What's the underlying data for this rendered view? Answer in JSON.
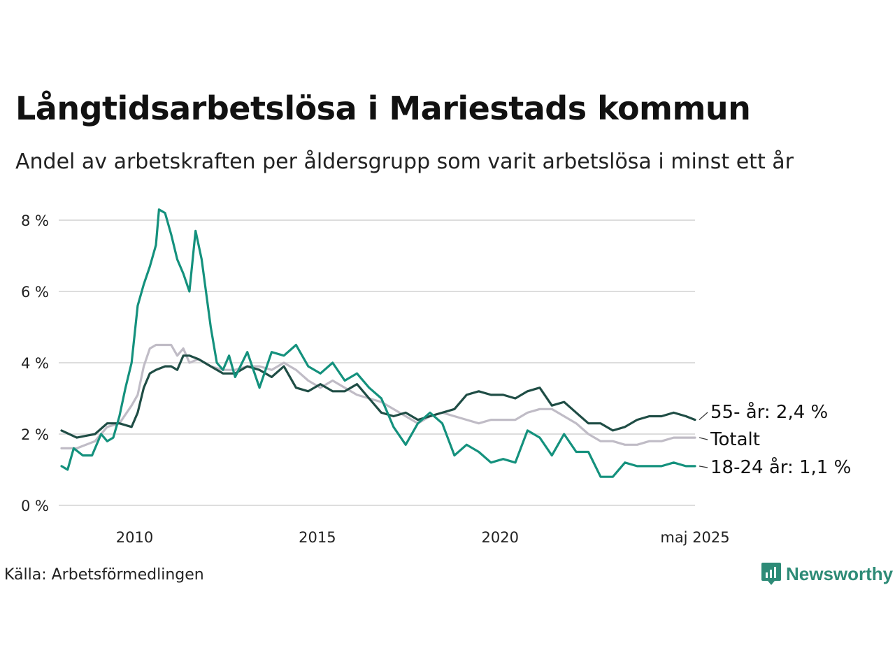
{
  "title": "Långtidsarbetslösa i Mariestads kommun",
  "subtitle": "Andel av arbetskraften per åldersgrupp som varit arbetslösa i minst ett år",
  "source": "Källa: Arbetsförmedlingen",
  "brand": "Newsworthy",
  "colors": {
    "age_55": "#1f4d45",
    "total": "#c0bcc6",
    "age_18_24": "#14917d",
    "grid": "#dddddd",
    "brand": "#2e8b77"
  },
  "chart_data": {
    "type": "line",
    "ylim": [
      0,
      8.3
    ],
    "yticks": [
      {
        "value": 0,
        "label": "0 %"
      },
      {
        "value": 2,
        "label": "2 %"
      },
      {
        "value": 4,
        "label": "4 %"
      },
      {
        "value": 6,
        "label": "6 %"
      },
      {
        "value": 8,
        "label": "8 %"
      }
    ],
    "xlim": [
      "2008-01",
      "2025-05"
    ],
    "xticks": [
      {
        "value": "2010-01",
        "label": "2010"
      },
      {
        "value": "2015-01",
        "label": "2015"
      },
      {
        "value": "2020-01",
        "label": "2020"
      },
      {
        "value": "2025-05",
        "label": "maj 2025"
      }
    ],
    "grid": true,
    "series": [
      {
        "name": "Totalt",
        "end_label": "Totalt",
        "color_key": "total",
        "points": [
          [
            "2008-01",
            1.6
          ],
          [
            "2008-06",
            1.6
          ],
          [
            "2008-12",
            1.8
          ],
          [
            "2009-04",
            2.2
          ],
          [
            "2009-08",
            2.3
          ],
          [
            "2009-12",
            2.8
          ],
          [
            "2010-02",
            3.1
          ],
          [
            "2010-04",
            3.9
          ],
          [
            "2010-06",
            4.4
          ],
          [
            "2010-08",
            4.5
          ],
          [
            "2010-11",
            4.5
          ],
          [
            "2011-01",
            4.5
          ],
          [
            "2011-03",
            4.2
          ],
          [
            "2011-05",
            4.4
          ],
          [
            "2011-07",
            4.0
          ],
          [
            "2011-10",
            4.1
          ],
          [
            "2012-02",
            3.9
          ],
          [
            "2012-06",
            3.8
          ],
          [
            "2012-10",
            3.8
          ],
          [
            "2013-02",
            3.9
          ],
          [
            "2013-06",
            3.9
          ],
          [
            "2013-10",
            3.8
          ],
          [
            "2014-02",
            4.0
          ],
          [
            "2014-06",
            3.8
          ],
          [
            "2014-10",
            3.5
          ],
          [
            "2015-02",
            3.3
          ],
          [
            "2015-06",
            3.5
          ],
          [
            "2015-10",
            3.3
          ],
          [
            "2016-02",
            3.1
          ],
          [
            "2016-06",
            3.0
          ],
          [
            "2016-10",
            2.9
          ],
          [
            "2017-02",
            2.7
          ],
          [
            "2017-06",
            2.5
          ],
          [
            "2017-10",
            2.3
          ],
          [
            "2018-02",
            2.5
          ],
          [
            "2018-06",
            2.6
          ],
          [
            "2018-10",
            2.5
          ],
          [
            "2019-02",
            2.4
          ],
          [
            "2019-06",
            2.3
          ],
          [
            "2019-10",
            2.4
          ],
          [
            "2020-02",
            2.4
          ],
          [
            "2020-06",
            2.4
          ],
          [
            "2020-10",
            2.6
          ],
          [
            "2021-02",
            2.7
          ],
          [
            "2021-06",
            2.7
          ],
          [
            "2021-10",
            2.5
          ],
          [
            "2022-02",
            2.3
          ],
          [
            "2022-06",
            2.0
          ],
          [
            "2022-10",
            1.8
          ],
          [
            "2023-02",
            1.8
          ],
          [
            "2023-06",
            1.7
          ],
          [
            "2023-10",
            1.7
          ],
          [
            "2024-02",
            1.8
          ],
          [
            "2024-06",
            1.8
          ],
          [
            "2024-10",
            1.9
          ],
          [
            "2025-02",
            1.9
          ],
          [
            "2025-05",
            1.9
          ]
        ]
      },
      {
        "name": "55- år",
        "end_label": "55- år: 2,4 %",
        "color_key": "age_55",
        "points": [
          [
            "2008-01",
            2.1
          ],
          [
            "2008-06",
            1.9
          ],
          [
            "2008-12",
            2.0
          ],
          [
            "2009-04",
            2.3
          ],
          [
            "2009-08",
            2.3
          ],
          [
            "2009-12",
            2.2
          ],
          [
            "2010-02",
            2.6
          ],
          [
            "2010-04",
            3.3
          ],
          [
            "2010-06",
            3.7
          ],
          [
            "2010-08",
            3.8
          ],
          [
            "2010-11",
            3.9
          ],
          [
            "2011-01",
            3.9
          ],
          [
            "2011-03",
            3.8
          ],
          [
            "2011-05",
            4.2
          ],
          [
            "2011-07",
            4.2
          ],
          [
            "2011-10",
            4.1
          ],
          [
            "2012-02",
            3.9
          ],
          [
            "2012-06",
            3.7
          ],
          [
            "2012-10",
            3.7
          ],
          [
            "2013-02",
            3.9
          ],
          [
            "2013-06",
            3.8
          ],
          [
            "2013-10",
            3.6
          ],
          [
            "2014-02",
            3.9
          ],
          [
            "2014-06",
            3.3
          ],
          [
            "2014-10",
            3.2
          ],
          [
            "2015-02",
            3.4
          ],
          [
            "2015-06",
            3.2
          ],
          [
            "2015-10",
            3.2
          ],
          [
            "2016-02",
            3.4
          ],
          [
            "2016-06",
            3.0
          ],
          [
            "2016-10",
            2.6
          ],
          [
            "2017-02",
            2.5
          ],
          [
            "2017-06",
            2.6
          ],
          [
            "2017-10",
            2.4
          ],
          [
            "2018-02",
            2.5
          ],
          [
            "2018-06",
            2.6
          ],
          [
            "2018-10",
            2.7
          ],
          [
            "2019-02",
            3.1
          ],
          [
            "2019-06",
            3.2
          ],
          [
            "2019-10",
            3.1
          ],
          [
            "2020-02",
            3.1
          ],
          [
            "2020-06",
            3.0
          ],
          [
            "2020-10",
            3.2
          ],
          [
            "2021-02",
            3.3
          ],
          [
            "2021-06",
            2.8
          ],
          [
            "2021-10",
            2.9
          ],
          [
            "2022-02",
            2.6
          ],
          [
            "2022-06",
            2.3
          ],
          [
            "2022-10",
            2.3
          ],
          [
            "2023-02",
            2.1
          ],
          [
            "2023-06",
            2.2
          ],
          [
            "2023-10",
            2.4
          ],
          [
            "2024-02",
            2.5
          ],
          [
            "2024-06",
            2.5
          ],
          [
            "2024-10",
            2.6
          ],
          [
            "2025-02",
            2.5
          ],
          [
            "2025-05",
            2.4
          ]
        ]
      },
      {
        "name": "18-24 år",
        "end_label": "18-24 år: 1,1 %",
        "color_key": "age_18_24",
        "points": [
          [
            "2008-01",
            1.1
          ],
          [
            "2008-03",
            1.0
          ],
          [
            "2008-05",
            1.6
          ],
          [
            "2008-08",
            1.4
          ],
          [
            "2008-11",
            1.4
          ],
          [
            "2009-02",
            2.0
          ],
          [
            "2009-04",
            1.8
          ],
          [
            "2009-06",
            1.9
          ],
          [
            "2009-08",
            2.5
          ],
          [
            "2009-10",
            3.3
          ],
          [
            "2009-12",
            4.0
          ],
          [
            "2010-02",
            5.6
          ],
          [
            "2010-04",
            6.2
          ],
          [
            "2010-06",
            6.7
          ],
          [
            "2010-08",
            7.3
          ],
          [
            "2010-09",
            8.3
          ],
          [
            "2010-11",
            8.2
          ],
          [
            "2011-01",
            7.6
          ],
          [
            "2011-03",
            6.9
          ],
          [
            "2011-05",
            6.5
          ],
          [
            "2011-07",
            6.0
          ],
          [
            "2011-09",
            7.7
          ],
          [
            "2011-11",
            6.9
          ],
          [
            "2012-02",
            5.0
          ],
          [
            "2012-04",
            4.0
          ],
          [
            "2012-06",
            3.8
          ],
          [
            "2012-08",
            4.2
          ],
          [
            "2012-10",
            3.6
          ],
          [
            "2013-02",
            4.3
          ],
          [
            "2013-04",
            3.8
          ],
          [
            "2013-06",
            3.3
          ],
          [
            "2013-10",
            4.3
          ],
          [
            "2014-02",
            4.2
          ],
          [
            "2014-06",
            4.5
          ],
          [
            "2014-10",
            3.9
          ],
          [
            "2015-02",
            3.7
          ],
          [
            "2015-06",
            4.0
          ],
          [
            "2015-10",
            3.5
          ],
          [
            "2016-02",
            3.7
          ],
          [
            "2016-06",
            3.3
          ],
          [
            "2016-10",
            3.0
          ],
          [
            "2017-02",
            2.2
          ],
          [
            "2017-06",
            1.7
          ],
          [
            "2017-10",
            2.3
          ],
          [
            "2018-02",
            2.6
          ],
          [
            "2018-06",
            2.3
          ],
          [
            "2018-10",
            1.4
          ],
          [
            "2019-02",
            1.7
          ],
          [
            "2019-06",
            1.5
          ],
          [
            "2019-10",
            1.2
          ],
          [
            "2020-02",
            1.3
          ],
          [
            "2020-06",
            1.2
          ],
          [
            "2020-10",
            2.1
          ],
          [
            "2021-02",
            1.9
          ],
          [
            "2021-06",
            1.4
          ],
          [
            "2021-10",
            2.0
          ],
          [
            "2022-02",
            1.5
          ],
          [
            "2022-06",
            1.5
          ],
          [
            "2022-10",
            0.8
          ],
          [
            "2023-02",
            0.8
          ],
          [
            "2023-06",
            1.2
          ],
          [
            "2023-10",
            1.1
          ],
          [
            "2024-02",
            1.1
          ],
          [
            "2024-06",
            1.1
          ],
          [
            "2024-10",
            1.2
          ],
          [
            "2025-02",
            1.1
          ],
          [
            "2025-05",
            1.1
          ]
        ]
      }
    ]
  }
}
